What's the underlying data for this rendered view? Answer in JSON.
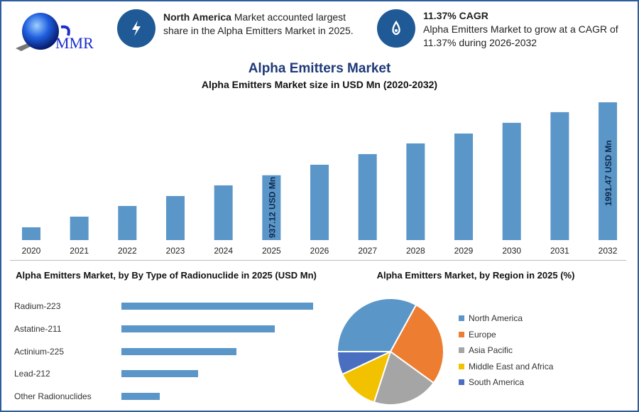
{
  "header": {
    "logo_text": "MMR",
    "highlight1": {
      "icon": "lightning-icon",
      "bold": "North America",
      "text": " Market accounted largest share in the Alpha Emitters Market in 2025."
    },
    "highlight2": {
      "icon": "flame-drop-icon",
      "bold": "11.37% CAGR",
      "text": "Alpha Emitters Market to grow at a CAGR of 11.37% during 2026-2032"
    }
  },
  "colors": {
    "primary": "#5b96c8",
    "dark_blue": "#1f5a96",
    "title_blue": "#1f3a78",
    "border": "#2e5d9e"
  },
  "chart_data": [
    {
      "type": "bar",
      "title": "Alpha Emitters Market",
      "subtitle": "Alpha Emitters Market size in USD Mn (2020-2032)",
      "categories": [
        "2020",
        "2021",
        "2022",
        "2023",
        "2024",
        "2025",
        "2026",
        "2027",
        "2028",
        "2029",
        "2030",
        "2031",
        "2032"
      ],
      "values": [
        185,
        339,
        493,
        637,
        791,
        937.12,
        1089,
        1243,
        1397,
        1540,
        1695,
        1849,
        1991.47
      ],
      "data_labels": {
        "2025": "937.12 USD Mn",
        "2032": "1991.47 USD Mn"
      },
      "ylim": [
        0,
        2000
      ],
      "grid": false
    },
    {
      "type": "bar",
      "orientation": "horizontal",
      "title": "Alpha Emitters Market, by By Type of Radionuclide in 2025 (USD Mn)",
      "categories": [
        "Radium-223",
        "Astatine-211",
        "Actinium-225",
        "Lead-212",
        "Other Radionuclides"
      ],
      "values": [
        50,
        40,
        30,
        20,
        10
      ]
    },
    {
      "type": "pie",
      "title": "Alpha Emitters Market, by Region in 2025 (%)",
      "legend_position": "right",
      "slices": [
        {
          "name": "North America",
          "value": 33,
          "color": "#5b96c8"
        },
        {
          "name": "Europe",
          "value": 27,
          "color": "#ed7d31"
        },
        {
          "name": "Asia Pacific",
          "value": 20,
          "color": "#a5a5a5"
        },
        {
          "name": "Middle East and Africa",
          "value": 13,
          "color": "#f2c200"
        },
        {
          "name": "South America",
          "value": 7,
          "color": "#4a6fc0"
        }
      ]
    }
  ]
}
